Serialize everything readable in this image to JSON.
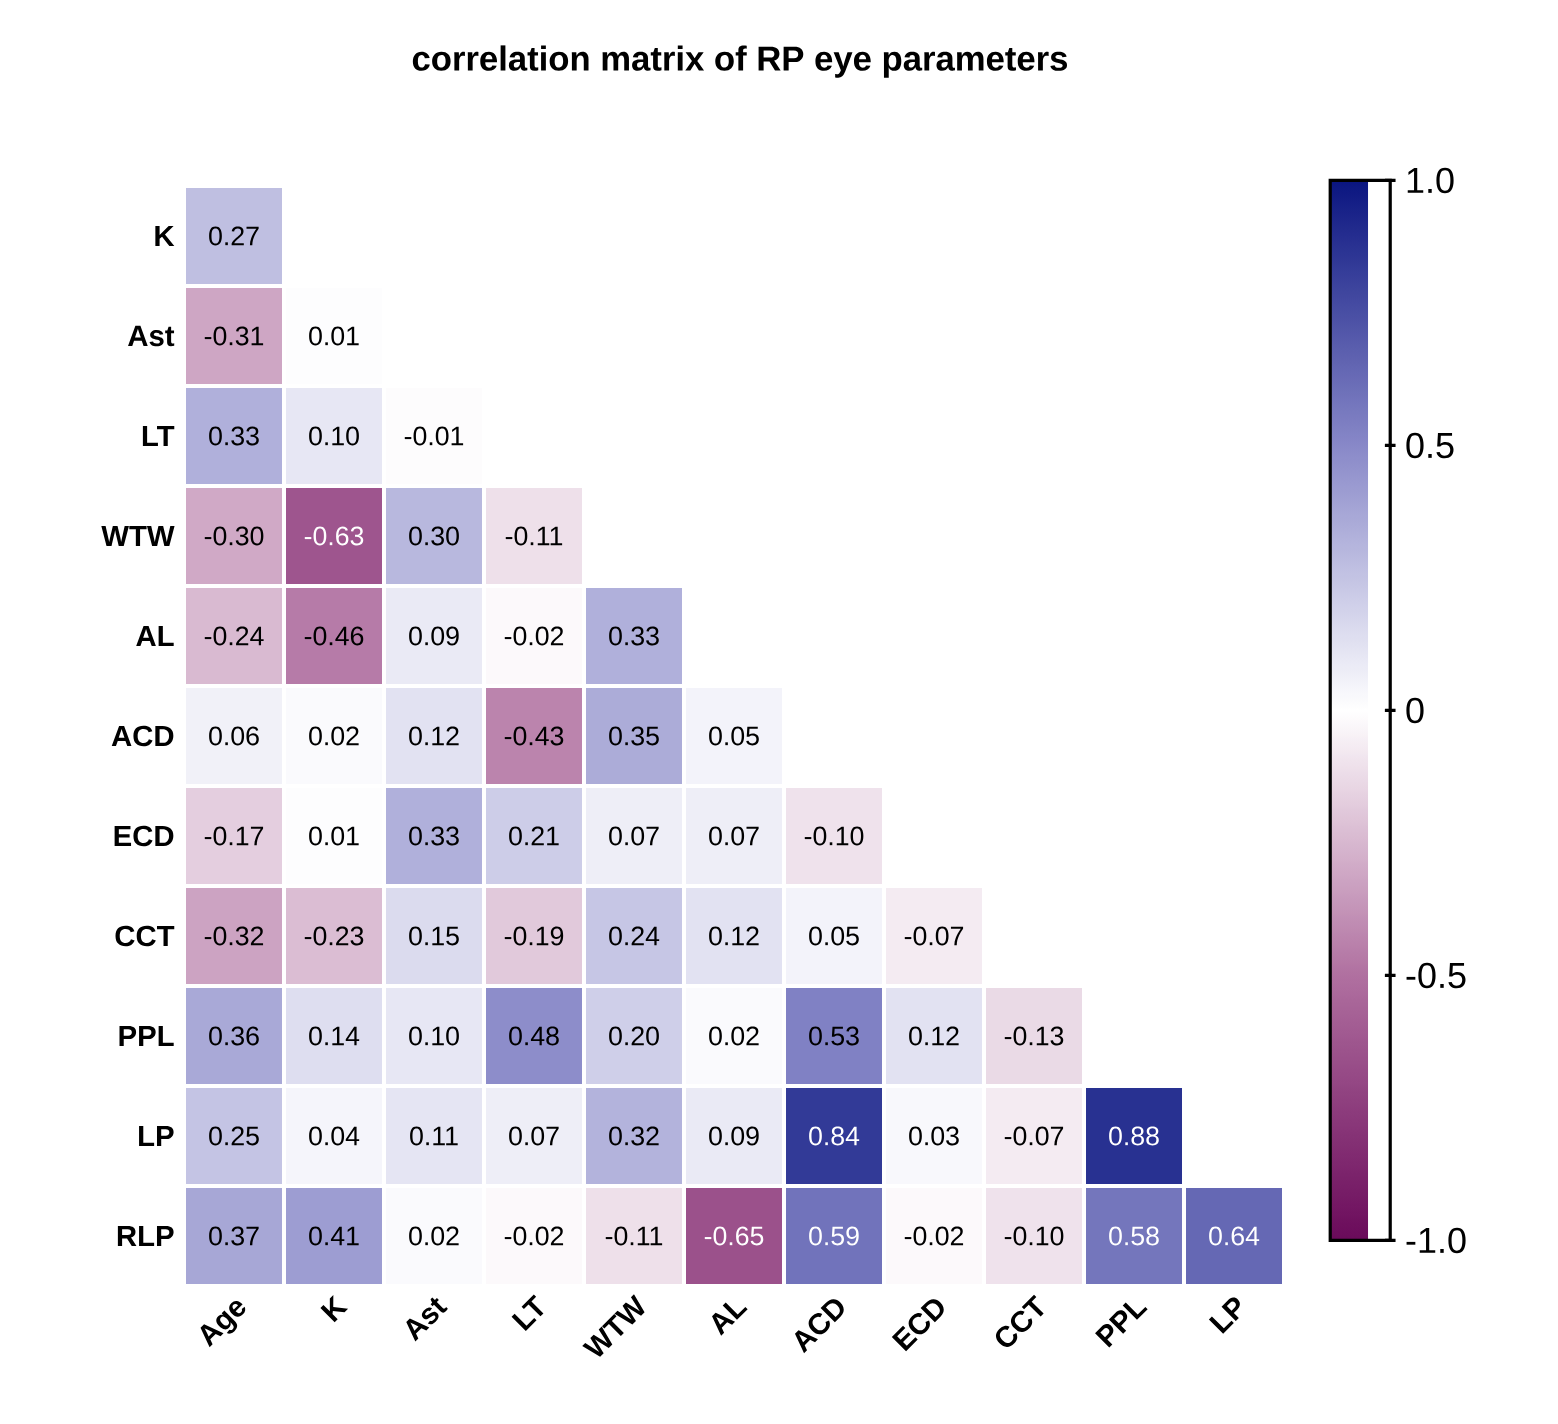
{
  "chart_data": {
    "type": "heatmap",
    "title": "correlation matrix of RP eye parameters",
    "categories": [
      "Age",
      "K",
      "Ast",
      "LT",
      "WTW",
      "AL",
      "ACD",
      "ECD",
      "CCT",
      "PPL",
      "LP"
    ],
    "y_categories": [
      "K",
      "Ast",
      "LT",
      "WTW",
      "AL",
      "ACD",
      "ECD",
      "CCT",
      "PPL",
      "LP",
      "RLP"
    ],
    "cells": [
      [
        0.27,
        null,
        null,
        null,
        null,
        null,
        null,
        null,
        null,
        null,
        null
      ],
      [
        -0.31,
        0.01,
        null,
        null,
        null,
        null,
        null,
        null,
        null,
        null,
        null
      ],
      [
        0.33,
        0.1,
        -0.01,
        null,
        null,
        null,
        null,
        null,
        null,
        null,
        null
      ],
      [
        -0.3,
        -0.63,
        0.3,
        -0.11,
        null,
        null,
        null,
        null,
        null,
        null,
        null
      ],
      [
        -0.24,
        -0.46,
        0.09,
        -0.02,
        0.33,
        null,
        null,
        null,
        null,
        null,
        null
      ],
      [
        0.06,
        0.02,
        0.12,
        -0.43,
        0.35,
        0.05,
        null,
        null,
        null,
        null,
        null
      ],
      [
        -0.17,
        0.01,
        0.33,
        0.21,
        0.07,
        0.07,
        -0.1,
        null,
        null,
        null,
        null
      ],
      [
        -0.32,
        -0.23,
        0.15,
        -0.19,
        0.24,
        0.12,
        0.05,
        -0.07,
        null,
        null,
        null
      ],
      [
        0.36,
        0.14,
        0.1,
        0.48,
        0.2,
        0.02,
        0.53,
        0.12,
        -0.13,
        null,
        null
      ],
      [
        0.25,
        0.04,
        0.11,
        0.07,
        0.32,
        0.09,
        0.84,
        0.03,
        -0.07,
        0.88,
        null
      ],
      [
        0.37,
        0.41,
        0.02,
        -0.02,
        -0.11,
        -0.65,
        0.59,
        -0.02,
        -0.1,
        0.58,
        0.64
      ]
    ],
    "cell_labels": [
      [
        "0.27",
        null,
        null,
        null,
        null,
        null,
        null,
        null,
        null,
        null,
        null
      ],
      [
        "-0.31",
        "0.01",
        null,
        null,
        null,
        null,
        null,
        null,
        null,
        null,
        null
      ],
      [
        "0.33",
        "0.10",
        "-0.01",
        null,
        null,
        null,
        null,
        null,
        null,
        null,
        null
      ],
      [
        "-0.30",
        "-0.63",
        "0.30",
        "-0.11",
        null,
        null,
        null,
        null,
        null,
        null,
        null
      ],
      [
        "-0.24",
        "-0.46",
        "0.09",
        "-0.02",
        "0.33",
        null,
        null,
        null,
        null,
        null,
        null
      ],
      [
        "0.06",
        "0.02",
        "0.12",
        "-0.43",
        "0.35",
        "0.05",
        null,
        null,
        null,
        null,
        null
      ],
      [
        "-0.17",
        "0.01",
        "0.33",
        "0.21",
        "0.07",
        "0.07",
        "-0.10",
        null,
        null,
        null,
        null
      ],
      [
        "-0.32",
        "-0.23",
        "0.15",
        "-0.19",
        "0.24",
        "0.12",
        "0.05",
        "-0.07",
        null,
        null,
        null
      ],
      [
        "0.36",
        "0.14",
        "0.10",
        "0.48",
        "0.20",
        "0.02",
        "0.53",
        "0.12",
        "-0.13",
        null,
        null
      ],
      [
        "0.25",
        "0.04",
        "0.11",
        "0.07",
        "0.32",
        "0.09",
        "0.84",
        "0.03",
        "-0.07",
        "0.88",
        null
      ],
      [
        "0.37",
        "0.41",
        "0.02",
        "-0.02",
        "-0.11",
        "-0.65",
        "0.59",
        "-0.02",
        "-0.10",
        "0.58",
        "0.64"
      ]
    ],
    "clim": [
      -1,
      1
    ],
    "cticks": [
      {
        "value": -1,
        "label": "-1.0"
      },
      -0.5,
      0,
      0.5,
      {
        "value": 1,
        "label": "1.0"
      }
    ]
  }
}
